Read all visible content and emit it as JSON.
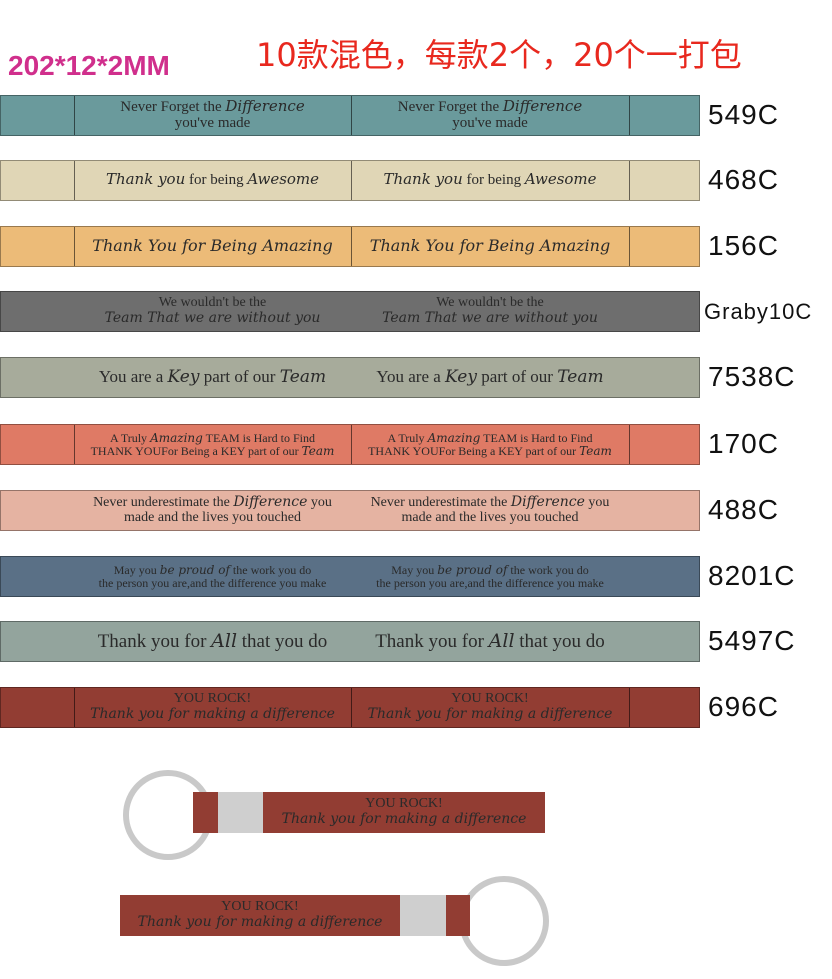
{
  "header": {
    "size": "202*12*2MM",
    "note": "10款混色，每款2个，20个一打包"
  },
  "strips": [
    {
      "code": "549C",
      "color": "#6a9a9c",
      "size": 15,
      "lines": [
        [
          {
            "t": "Never Forget the "
          },
          {
            "t": "Difference",
            "s": 1
          }
        ],
        [
          {
            "t": "you've made"
          }
        ]
      ]
    },
    {
      "code": "468C",
      "color": "#e0d6b6",
      "size": 15,
      "lines": [
        [
          {
            "t": "Thank you",
            "s": 1
          },
          {
            "t": " for being "
          },
          {
            "t": "Awesome",
            "s": 1
          }
        ]
      ]
    },
    {
      "code": "156C",
      "color": "#ecbb78",
      "size": 16,
      "lines": [
        [
          {
            "t": "Thank You for Being Amazing",
            "s": 1
          }
        ]
      ]
    },
    {
      "code": "Graby10C",
      "color": "#6e6e6e",
      "size": 14,
      "lines": [
        [
          {
            "t": "We wouldn't be the"
          }
        ],
        [
          {
            "t": "Team That we are without you",
            "s": 1
          }
        ]
      ]
    },
    {
      "code": "7538C",
      "color": "#a7ab9b",
      "size": 17,
      "lines": [
        [
          {
            "t": "You are a "
          },
          {
            "t": "Key",
            "s": 1
          },
          {
            "t": " part of our "
          },
          {
            "t": "Team",
            "s": 1
          }
        ]
      ]
    },
    {
      "code": "170C",
      "color": "#df7a65",
      "size": 12,
      "lines": [
        [
          {
            "t": "A Truly "
          },
          {
            "t": "Amazing",
            "s": 1
          },
          {
            "t": " TEAM is Hard to Find"
          }
        ],
        [
          {
            "t": "THANK YOUFor Being a KEY part of our "
          },
          {
            "t": "Team",
            "s": 1
          }
        ]
      ]
    },
    {
      "code": "488C",
      "color": "#e5b3a2",
      "size": 14,
      "lines": [
        [
          {
            "t": "Never underestimate the "
          },
          {
            "t": "Difference",
            "s": 1
          },
          {
            "t": " you"
          }
        ],
        [
          {
            "t": "made and the lives you touched"
          }
        ]
      ]
    },
    {
      "code": "8201C",
      "color": "#5a7086",
      "size": 12,
      "lines": [
        [
          {
            "t": "May you "
          },
          {
            "t": "be proud of",
            "s": 1
          },
          {
            "t": " the work you do"
          }
        ],
        [
          {
            "t": "the person you are,and the difference you make"
          }
        ]
      ]
    },
    {
      "code": "5497C",
      "color": "#93a49d",
      "size": 19,
      "lines": [
        [
          {
            "t": "Thank you for "
          },
          {
            "t": "All",
            "s": 1
          },
          {
            "t": " that you do"
          }
        ]
      ]
    },
    {
      "code": "696C",
      "color": "#923d33",
      "size": 14,
      "lines": [
        [
          {
            "t": "YOU ROCK!"
          }
        ],
        [
          {
            "t": "Thank you for making a difference",
            "s": 1
          }
        ]
      ]
    }
  ],
  "keychains": [
    {
      "lines": [
        [
          {
            "t": "YOU ROCK!"
          }
        ],
        [
          {
            "t": "Thank you for making a difference",
            "s": 1
          }
        ]
      ]
    },
    {
      "lines": [
        [
          {
            "t": "YOU ROCK!"
          }
        ],
        [
          {
            "t": "Thank you for making a difference",
            "s": 1
          }
        ]
      ]
    }
  ]
}
